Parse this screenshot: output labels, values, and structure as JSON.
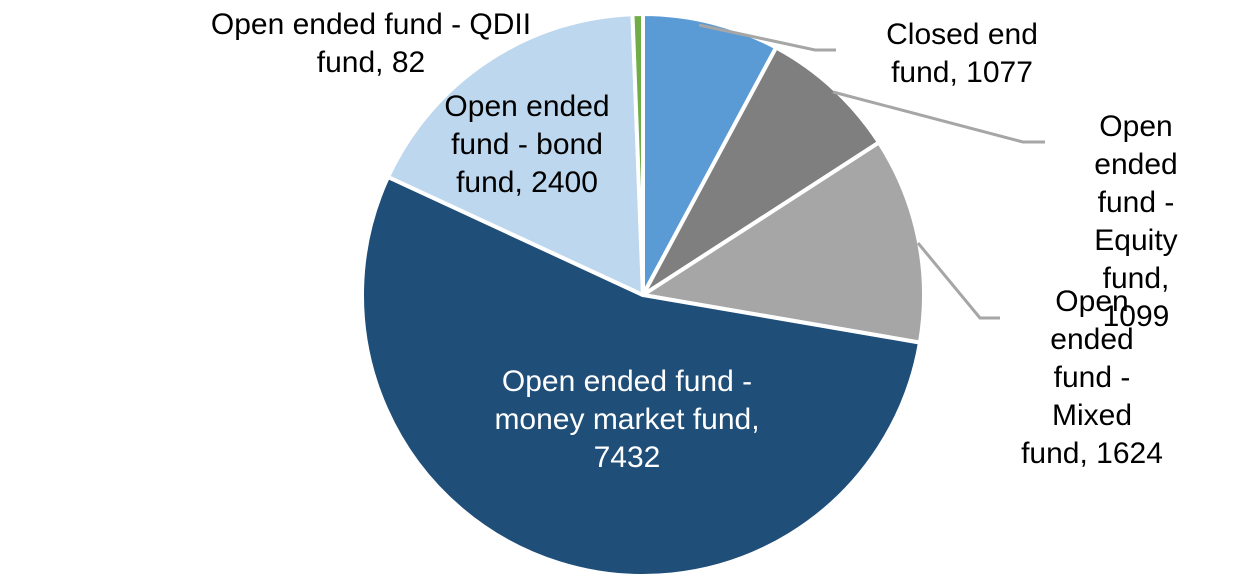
{
  "chart_data": {
    "type": "pie",
    "total": 13714,
    "start_angle_deg": 0,
    "direction": "clockwise",
    "slice_border_color": "#ffffff",
    "leader_line_color": "#a6a6a6",
    "background_color": "#ffffff",
    "legend": "none",
    "data_label_format": "category name, value",
    "slices": [
      {
        "label": "Closed end fund",
        "value": 1077,
        "color": "#5b9bd5"
      },
      {
        "label": "Open ended fund - Equity fund",
        "value": 1099,
        "color": "#7f7f7f"
      },
      {
        "label": "Open ended fund - Mixed fund",
        "value": 1624,
        "color": "#a6a6a6"
      },
      {
        "label": "Open ended fund - money market fund",
        "value": 7432,
        "color": "#1f4e79"
      },
      {
        "label": "Open ended fund - bond fund",
        "value": 2400,
        "color": "#bdd7ee"
      },
      {
        "label": "Open ended fund - QDII fund",
        "value": 82,
        "color": "#70ad47"
      }
    ]
  },
  "data_labels": {
    "qdii": {
      "text": "Open ended fund - QDII\nfund, 82",
      "color": "#000000"
    },
    "bond": {
      "text": "Open ended\nfund - bond\nfund, 2400",
      "color": "#000000"
    },
    "closed_end": {
      "text": "Closed end\nfund, 1077",
      "color": "#000000"
    },
    "equity": {
      "text": "Open ended\nfund - Equity\nfund, 1099",
      "color": "#000000"
    },
    "mixed": {
      "text": "Open ended\nfund - Mixed\nfund, 1624",
      "color": "#000000"
    },
    "money_market": {
      "text": "Open ended fund -\nmoney market fund,\n7432",
      "color": "#ffffff"
    }
  }
}
